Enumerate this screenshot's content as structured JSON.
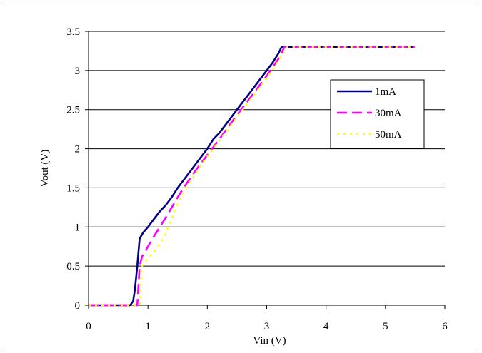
{
  "chart_data": {
    "type": "line",
    "title": "",
    "xlabel": "Vin (V)",
    "ylabel": "Vout (V)",
    "xlim": [
      0,
      6
    ],
    "ylim": [
      0,
      3.5
    ],
    "xticks": [
      "0",
      "1",
      "2",
      "3",
      "4",
      "5",
      "6"
    ],
    "yticks": [
      "0",
      "0.5",
      "1",
      "1.5",
      "2",
      "2.5",
      "3",
      "3.5"
    ],
    "grid": "horizontal",
    "legend_position": "right",
    "series": [
      {
        "name": "1mA",
        "color": "#000080",
        "style": "solid",
        "points": [
          [
            0,
            0
          ],
          [
            0.7,
            0
          ],
          [
            0.75,
            0.05
          ],
          [
            0.78,
            0.2
          ],
          [
            0.82,
            0.5
          ],
          [
            0.86,
            0.85
          ],
          [
            0.92,
            0.93
          ],
          [
            1.0,
            1.0
          ],
          [
            1.1,
            1.1
          ],
          [
            1.2,
            1.2
          ],
          [
            1.3,
            1.28
          ],
          [
            1.4,
            1.38
          ],
          [
            1.5,
            1.5
          ],
          [
            1.6,
            1.6
          ],
          [
            1.7,
            1.7
          ],
          [
            1.8,
            1.8
          ],
          [
            1.9,
            1.9
          ],
          [
            2.0,
            2.0
          ],
          [
            2.1,
            2.12
          ],
          [
            2.2,
            2.2
          ],
          [
            2.3,
            2.3
          ],
          [
            2.4,
            2.4
          ],
          [
            2.5,
            2.5
          ],
          [
            2.6,
            2.6
          ],
          [
            2.7,
            2.7
          ],
          [
            2.8,
            2.8
          ],
          [
            2.9,
            2.9
          ],
          [
            3.0,
            3.0
          ],
          [
            3.1,
            3.1
          ],
          [
            3.2,
            3.22
          ],
          [
            3.25,
            3.3
          ],
          [
            5.5,
            3.3
          ]
        ]
      },
      {
        "name": "30mA",
        "color": "#ff00ff",
        "style": "dashed",
        "points": [
          [
            0,
            0
          ],
          [
            0.82,
            0
          ],
          [
            0.84,
            0.25
          ],
          [
            0.86,
            0.5
          ],
          [
            0.9,
            0.62
          ],
          [
            1.0,
            0.75
          ],
          [
            1.1,
            0.88
          ],
          [
            1.2,
            1.0
          ],
          [
            1.3,
            1.12
          ],
          [
            1.4,
            1.25
          ],
          [
            1.5,
            1.38
          ],
          [
            1.6,
            1.5
          ],
          [
            1.8,
            1.72
          ],
          [
            2.0,
            1.92
          ],
          [
            2.2,
            2.12
          ],
          [
            2.4,
            2.33
          ],
          [
            2.6,
            2.53
          ],
          [
            2.8,
            2.73
          ],
          [
            3.0,
            2.93
          ],
          [
            3.2,
            3.15
          ],
          [
            3.3,
            3.3
          ],
          [
            5.5,
            3.3
          ]
        ]
      },
      {
        "name": "50mA",
        "color": "#ffff00",
        "style": "dotted",
        "points": [
          [
            0,
            0
          ],
          [
            0.86,
            0
          ],
          [
            0.88,
            0.3
          ],
          [
            0.9,
            0.5
          ],
          [
            1.0,
            0.6
          ],
          [
            1.1,
            0.68
          ],
          [
            1.2,
            0.78
          ],
          [
            1.3,
            0.92
          ],
          [
            1.4,
            1.1
          ],
          [
            1.5,
            1.3
          ],
          [
            1.6,
            1.45
          ],
          [
            1.8,
            1.68
          ],
          [
            2.0,
            1.9
          ],
          [
            2.2,
            2.1
          ],
          [
            2.4,
            2.3
          ],
          [
            2.6,
            2.5
          ],
          [
            2.8,
            2.7
          ],
          [
            3.0,
            2.9
          ],
          [
            3.2,
            3.12
          ],
          [
            3.35,
            3.3
          ],
          [
            5.5,
            3.3
          ]
        ]
      }
    ]
  }
}
